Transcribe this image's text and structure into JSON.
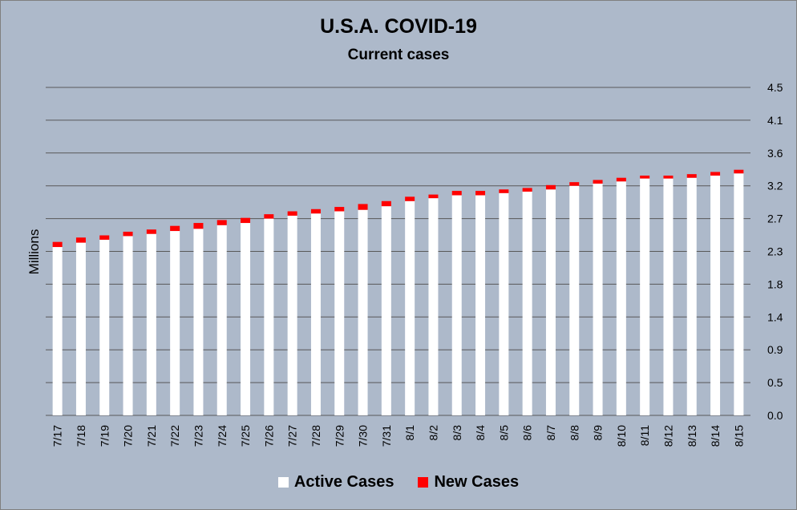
{
  "colors": {
    "background": "#adb9ca",
    "active": "#ffffff",
    "new": "#ff0000",
    "grid": "#595959"
  },
  "chart_data": {
    "type": "bar",
    "stacked": true,
    "title": "U.S.A. COVID-19",
    "subtitle": "Current cases",
    "ylabel": "Millions",
    "xlabel": "",
    "ylim": [
      0,
      4.5
    ],
    "y_axis_side": "right",
    "y_ticks": [
      "0.0",
      "0.5",
      "0.9",
      "1.4",
      "1.8",
      "2.3",
      "2.7",
      "3.2",
      "3.6",
      "4.1",
      "4.5"
    ],
    "grid": true,
    "legend": "bottom",
    "categories": [
      "7/17",
      "7/18",
      "7/19",
      "7/20",
      "7/21",
      "7/22",
      "7/23",
      "7/24",
      "7/25",
      "7/26",
      "7/27",
      "7/28",
      "7/29",
      "7/30",
      "7/31",
      "8/1",
      "8/2",
      "8/3",
      "8/4",
      "8/5",
      "8/6",
      "8/7",
      "8/8",
      "8/9",
      "8/10",
      "8/11",
      "8/12",
      "8/13",
      "8/14",
      "8/15"
    ],
    "series": [
      {
        "name": "Active Cases",
        "color": "#ffffff",
        "values": [
          2.31,
          2.37,
          2.41,
          2.46,
          2.49,
          2.53,
          2.56,
          2.61,
          2.64,
          2.7,
          2.74,
          2.77,
          2.8,
          2.82,
          2.87,
          2.94,
          2.98,
          3.02,
          3.02,
          3.05,
          3.07,
          3.1,
          3.15,
          3.18,
          3.21,
          3.25,
          3.25,
          3.26,
          3.29,
          3.32
        ]
      },
      {
        "name": "New Cases",
        "color": "#ff0000",
        "values": [
          0.07,
          0.07,
          0.06,
          0.06,
          0.06,
          0.07,
          0.08,
          0.07,
          0.07,
          0.06,
          0.06,
          0.06,
          0.06,
          0.08,
          0.07,
          0.06,
          0.05,
          0.06,
          0.06,
          0.05,
          0.05,
          0.06,
          0.05,
          0.05,
          0.05,
          0.04,
          0.04,
          0.05,
          0.05,
          0.05
        ]
      }
    ]
  }
}
